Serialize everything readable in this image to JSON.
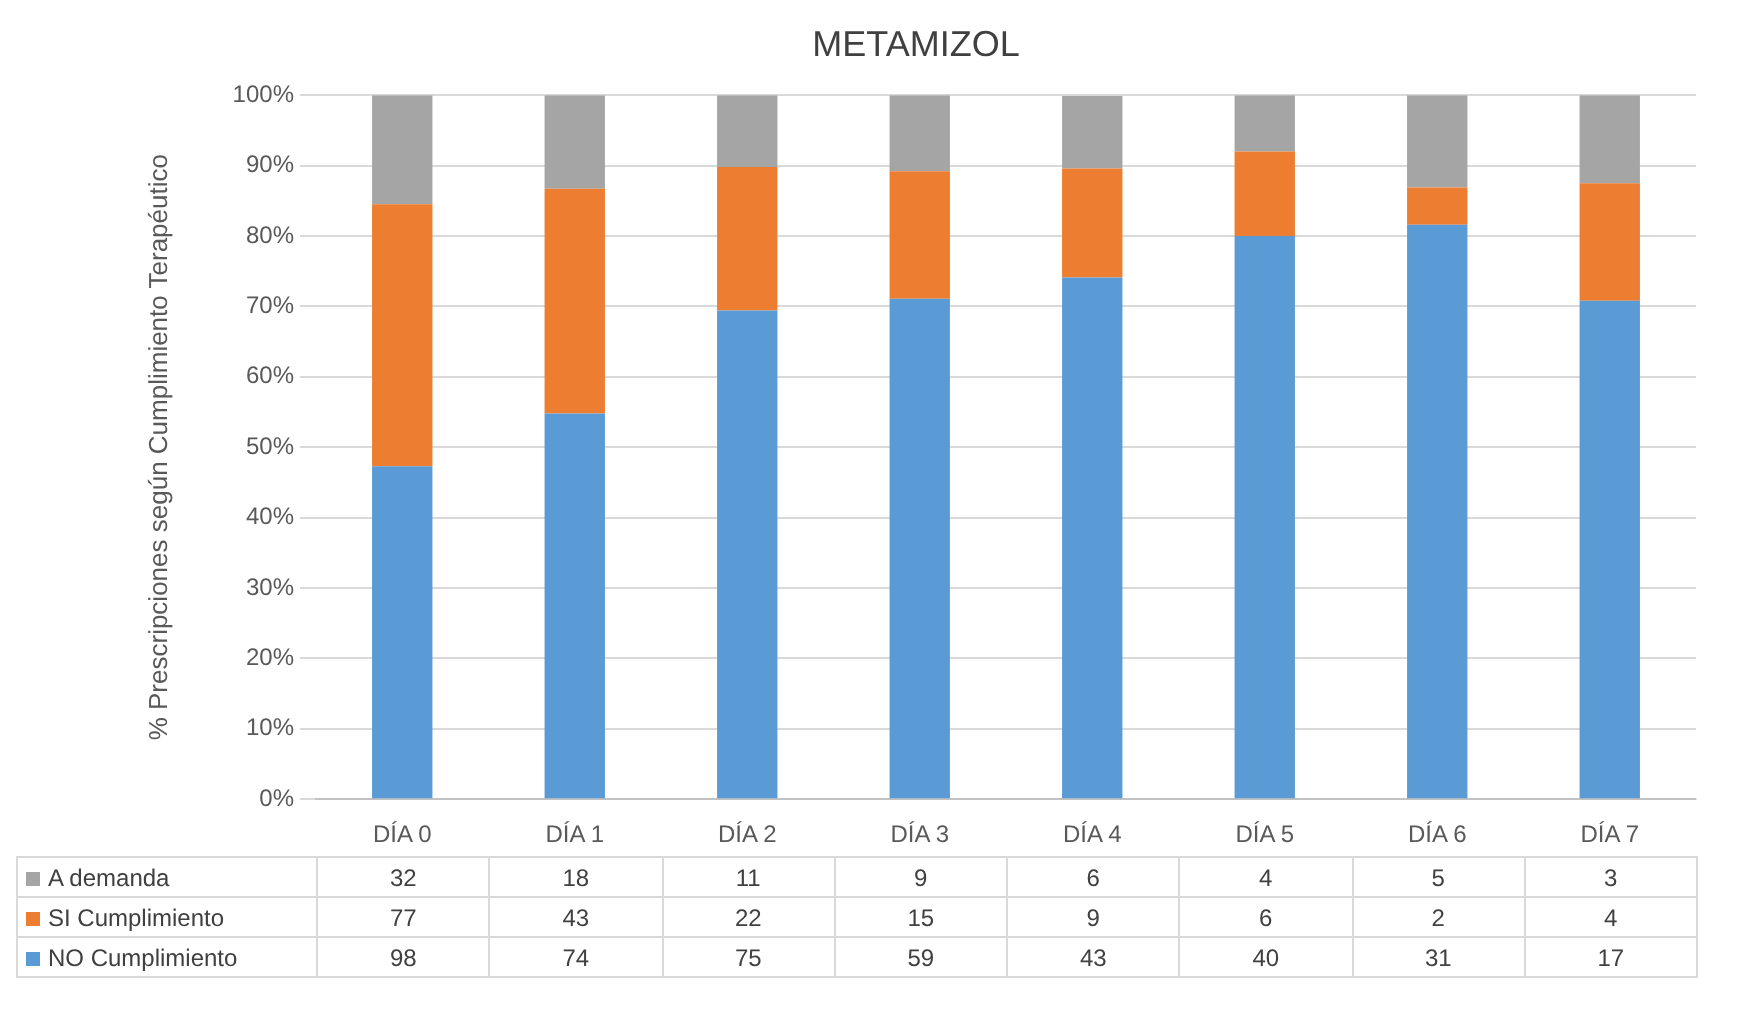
{
  "chart_data": [
    {
      "type": "bar",
      "title": "METAMIZOL",
      "ylabel": "% Prescripciones según Cumplimiento Terapéutico",
      "stacked": true,
      "categories": [
        "DÍA 0",
        "DÍA 1",
        "DÍA 2",
        "DÍA 3",
        "DÍA 4",
        "DÍA 5",
        "DÍA 6",
        "DÍA 7"
      ],
      "series": [
        {
          "name": "NO Cumplimiento",
          "color": "#5b9bd5",
          "values": [
            47.3,
            54.8,
            69.4,
            71.1,
            74.1,
            80,
            81.6,
            70.8
          ]
        },
        {
          "name": "SI Cumplimiento",
          "color": "#ed7d31",
          "values": [
            37.2,
            31.9,
            20.4,
            18.1,
            15.5,
            12,
            5.3,
            16.7
          ]
        },
        {
          "name": "A demanda",
          "color": "#a5a5a5",
          "values": [
            15.5,
            13.3,
            10.2,
            10.8,
            10.3,
            8,
            13.1,
            12.5
          ]
        }
      ],
      "ylim": [
        0,
        100
      ],
      "yticks": [
        {
          "value": 0,
          "label": "0%"
        },
        {
          "value": 10,
          "label": "10%"
        },
        {
          "value": 20,
          "label": "20%"
        },
        {
          "value": 30,
          "label": "30%"
        },
        {
          "value": 40,
          "label": "40%"
        },
        {
          "value": 50,
          "label": "50%"
        },
        {
          "value": 60,
          "label": "60%"
        },
        {
          "value": 70,
          "label": "70%"
        },
        {
          "value": 80,
          "label": "80%"
        },
        {
          "value": 90,
          "label": "90%"
        },
        {
          "value": 100,
          "label": "100%"
        }
      ],
      "grid": "y"
    },
    {
      "type": "other",
      "annotations": [
        "32",
        "18",
        "11",
        "9",
        "6",
        "4",
        "5",
        "3",
        "77",
        "43",
        "22",
        "15",
        "9",
        "6",
        "2",
        "4",
        "98",
        "74",
        "75",
        "59",
        "43",
        "40",
        "31",
        "17"
      ]
    }
  ]
}
